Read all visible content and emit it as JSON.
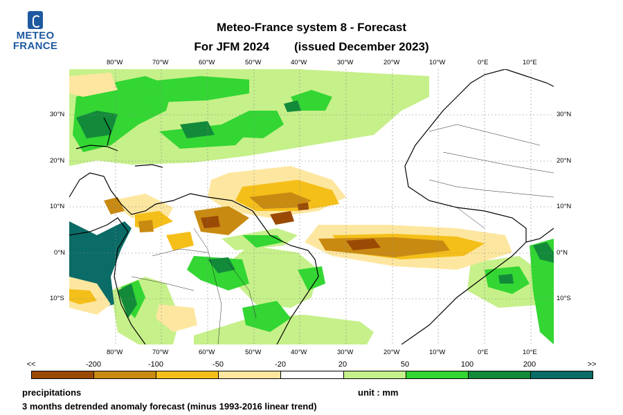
{
  "logo": {
    "line1": "METEO",
    "line2": "FRANCE"
  },
  "header": {
    "title": "Meteo-France system 8  -  Forecast",
    "period": "For JFM 2024",
    "issued": "(issued December 2023)"
  },
  "axes": {
    "lon_labels": [
      "80°W",
      "70°W",
      "60°W",
      "50°W",
      "40°W",
      "30°W",
      "20°W",
      "10°W",
      "0°E",
      "10°E"
    ],
    "lat_labels": [
      "30°N",
      "20°N",
      "10°N",
      "0°N",
      "10°S"
    ]
  },
  "legend": {
    "edge_left": "<<",
    "edge_right": ">>",
    "ticks": [
      "-200",
      "-100",
      "-50",
      "-20",
      "20",
      "50",
      "100",
      "200"
    ],
    "colors": [
      "#9b4a05",
      "#c98a12",
      "#f5bf1a",
      "#fde7a0",
      "#ffffff",
      "#c6f08a",
      "#33d633",
      "#138a3a",
      "#0b6b66"
    ]
  },
  "footer": {
    "variable": "precipitations",
    "unit": "unit : mm",
    "description": "3 months detrended anomaly forecast (minus 1993-2016 linear trend)"
  },
  "map_data": {
    "region": "Tropical Atlantic, South America, West Africa",
    "lon_range": [
      -90,
      15
    ],
    "lat_range": [
      -20,
      40
    ]
  }
}
